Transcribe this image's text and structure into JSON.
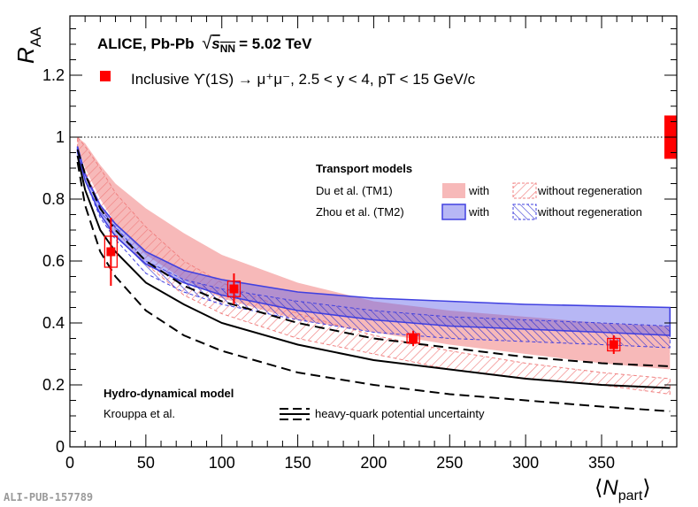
{
  "chart_data": {
    "type": "scatter",
    "title": "ALICE, Pb-Pb",
    "energy_label": "= 5.02 TeV",
    "energy_symbol": "s",
    "energy_subscript": "NN",
    "xlabel": "N",
    "xlabel_sub": "part",
    "ylabel": "R",
    "ylabel_sub": "AA",
    "xlim": [
      0,
      400
    ],
    "ylim": [
      0,
      1.35
    ],
    "x_ticks": [
      0,
      50,
      100,
      150,
      200,
      250,
      300,
      350
    ],
    "x_tick_labels": [
      "0",
      "50",
      "100",
      "150",
      "200",
      "250",
      "300",
      "350"
    ],
    "y_ticks": [
      0,
      0.2,
      0.4,
      0.6,
      0.8,
      1,
      1.2
    ],
    "y_tick_labels": [
      "0",
      "0.2",
      "0.4",
      "0.6",
      "0.8",
      "1",
      "1.2"
    ],
    "reference_line": 1,
    "global_uncertainty": [
      0.93,
      1.07
    ],
    "series": [
      {
        "name": "Inclusive ϒ(1S) → μ⁺μ⁻, 2.5 < y < 4, pT < 15 GeV/c",
        "x": [
          27,
          108,
          226,
          358
        ],
        "y": [
          0.63,
          0.51,
          0.35,
          0.33
        ],
        "stat_err": [
          0.11,
          0.05,
          0.025,
          0.03
        ],
        "syst_err": [
          0.05,
          0.025,
          0.015,
          0.02
        ],
        "color": "#ff0000"
      }
    ],
    "models": {
      "transport_title": "Transport models",
      "tm1_name": "Du et al. (TM1)",
      "tm2_name": "Zhou et al. (TM2)",
      "with_label": "with",
      "without_label": "without regeneration",
      "hydro_title": "Hydro-dynamical model",
      "hydro_name": "Krouppa et al.",
      "hydro_band_label": "heavy-quark potential uncertainty",
      "tm1_color": "#f08080",
      "tm2_color": "#6060e8",
      "tm1_with": {
        "x": [
          5,
          10,
          20,
          30,
          50,
          75,
          100,
          150,
          200,
          250,
          300,
          350,
          395
        ],
        "low": [
          0.97,
          0.9,
          0.8,
          0.72,
          0.62,
          0.54,
          0.48,
          0.41,
          0.37,
          0.33,
          0.3,
          0.27,
          0.25
        ],
        "high": [
          1.0,
          0.98,
          0.91,
          0.85,
          0.77,
          0.69,
          0.62,
          0.53,
          0.47,
          0.44,
          0.42,
          0.4,
          0.39
        ]
      },
      "tm1_without": {
        "x": [
          5,
          10,
          20,
          30,
          50,
          75,
          100,
          150,
          200,
          250,
          300,
          350,
          395
        ],
        "low": [
          0.96,
          0.89,
          0.78,
          0.7,
          0.59,
          0.49,
          0.43,
          0.35,
          0.3,
          0.25,
          0.22,
          0.2,
          0.17
        ],
        "high": [
          1.0,
          0.97,
          0.9,
          0.82,
          0.71,
          0.6,
          0.53,
          0.43,
          0.36,
          0.31,
          0.27,
          0.24,
          0.22
        ]
      },
      "tm2_with": {
        "x": [
          5,
          10,
          20,
          30,
          50,
          75,
          100,
          150,
          200,
          250,
          300,
          350,
          395
        ],
        "low": [
          0.95,
          0.86,
          0.75,
          0.68,
          0.59,
          0.53,
          0.49,
          0.44,
          0.41,
          0.39,
          0.38,
          0.37,
          0.36
        ],
        "high": [
          0.97,
          0.88,
          0.78,
          0.72,
          0.63,
          0.57,
          0.54,
          0.5,
          0.48,
          0.47,
          0.46,
          0.455,
          0.45
        ]
      },
      "tm2_without": {
        "x": [
          5,
          10,
          20,
          30,
          50,
          75,
          100,
          150,
          200,
          250,
          300,
          350,
          395
        ],
        "low": [
          0.95,
          0.86,
          0.74,
          0.67,
          0.56,
          0.5,
          0.46,
          0.41,
          0.37,
          0.35,
          0.34,
          0.33,
          0.32
        ],
        "high": [
          0.97,
          0.88,
          0.77,
          0.71,
          0.6,
          0.54,
          0.51,
          0.47,
          0.44,
          0.42,
          0.41,
          0.4,
          0.39
        ]
      },
      "hydro_solid": {
        "x": [
          5,
          10,
          20,
          30,
          50,
          75,
          100,
          150,
          200,
          250,
          300,
          350,
          395
        ],
        "y": [
          0.94,
          0.83,
          0.7,
          0.63,
          0.53,
          0.46,
          0.4,
          0.33,
          0.28,
          0.25,
          0.22,
          0.2,
          0.19
        ]
      },
      "hydro_dashed_upper": {
        "x": [
          5,
          10,
          20,
          30,
          50,
          75,
          100,
          150,
          200,
          250,
          300,
          350,
          395
        ],
        "y": [
          0.96,
          0.88,
          0.77,
          0.7,
          0.6,
          0.52,
          0.47,
          0.4,
          0.35,
          0.32,
          0.29,
          0.27,
          0.26
        ]
      },
      "hydro_dashed_lower": {
        "x": [
          5,
          10,
          20,
          30,
          50,
          75,
          100,
          150,
          200,
          250,
          300,
          350,
          395
        ],
        "y": [
          0.92,
          0.78,
          0.63,
          0.55,
          0.44,
          0.36,
          0.31,
          0.24,
          0.2,
          0.17,
          0.15,
          0.13,
          0.115
        ]
      }
    },
    "watermark": "ALI-PUB-157789"
  }
}
